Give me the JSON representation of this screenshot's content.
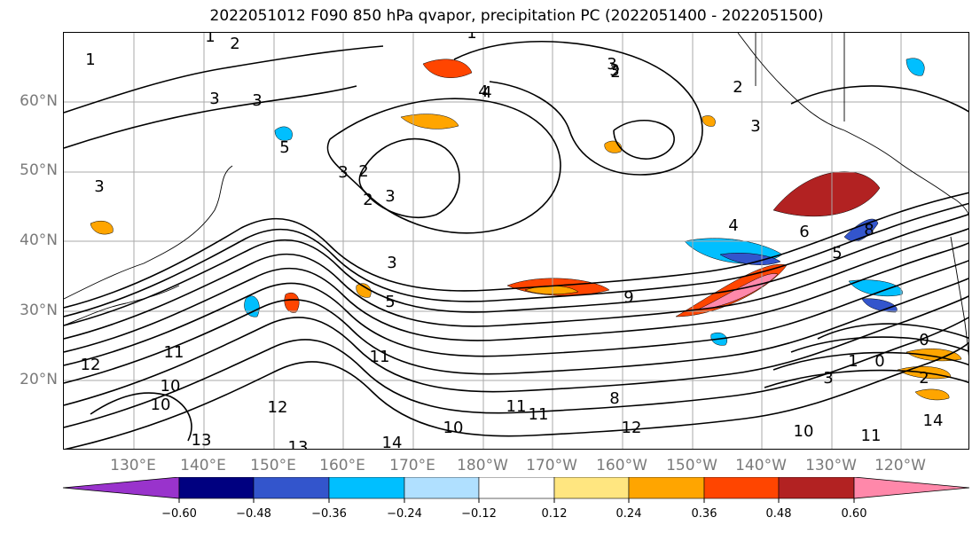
{
  "title": "2022051012 F090 850 hPa qvapor, precipitation PC (2022051400 - 2022051500)",
  "lat_labels": [
    "60°N",
    "50°N",
    "40°N",
    "30°N",
    "20°N"
  ],
  "lon_labels": [
    "130°E",
    "140°E",
    "150°E",
    "160°E",
    "170°E",
    "180°W",
    "170°W",
    "160°W",
    "150°W",
    "140°W",
    "130°W",
    "120°W"
  ],
  "colorbar": {
    "tick_labels": [
      "−0.60",
      "−0.48",
      "−0.36",
      "−0.24",
      "−0.12",
      "0.12",
      "0.24",
      "0.36",
      "0.48",
      "0.60"
    ],
    "colors": [
      "#9933cc",
      "#000080",
      "#3355cc",
      "#00bfff",
      "#b0e0ff",
      "#ffffff",
      "#ffe680",
      "#ffa500",
      "#ff4500",
      "#b22222",
      "#ff88aa"
    ]
  },
  "contour_labels": [
    "1",
    "2",
    "1",
    "3",
    "3",
    "2",
    "1",
    "2",
    "3",
    "4",
    "2",
    "3",
    "4",
    "3",
    "5",
    "3",
    "2",
    "3",
    "3",
    "4",
    "5",
    "9",
    "6",
    "8",
    "5",
    "11",
    "11",
    "12",
    "10",
    "13",
    "13",
    "14",
    "12",
    "10",
    "11",
    "11",
    "8",
    "10",
    "0",
    "0",
    "1",
    "3",
    "2",
    "11",
    "10",
    "14",
    "3",
    "12"
  ]
}
